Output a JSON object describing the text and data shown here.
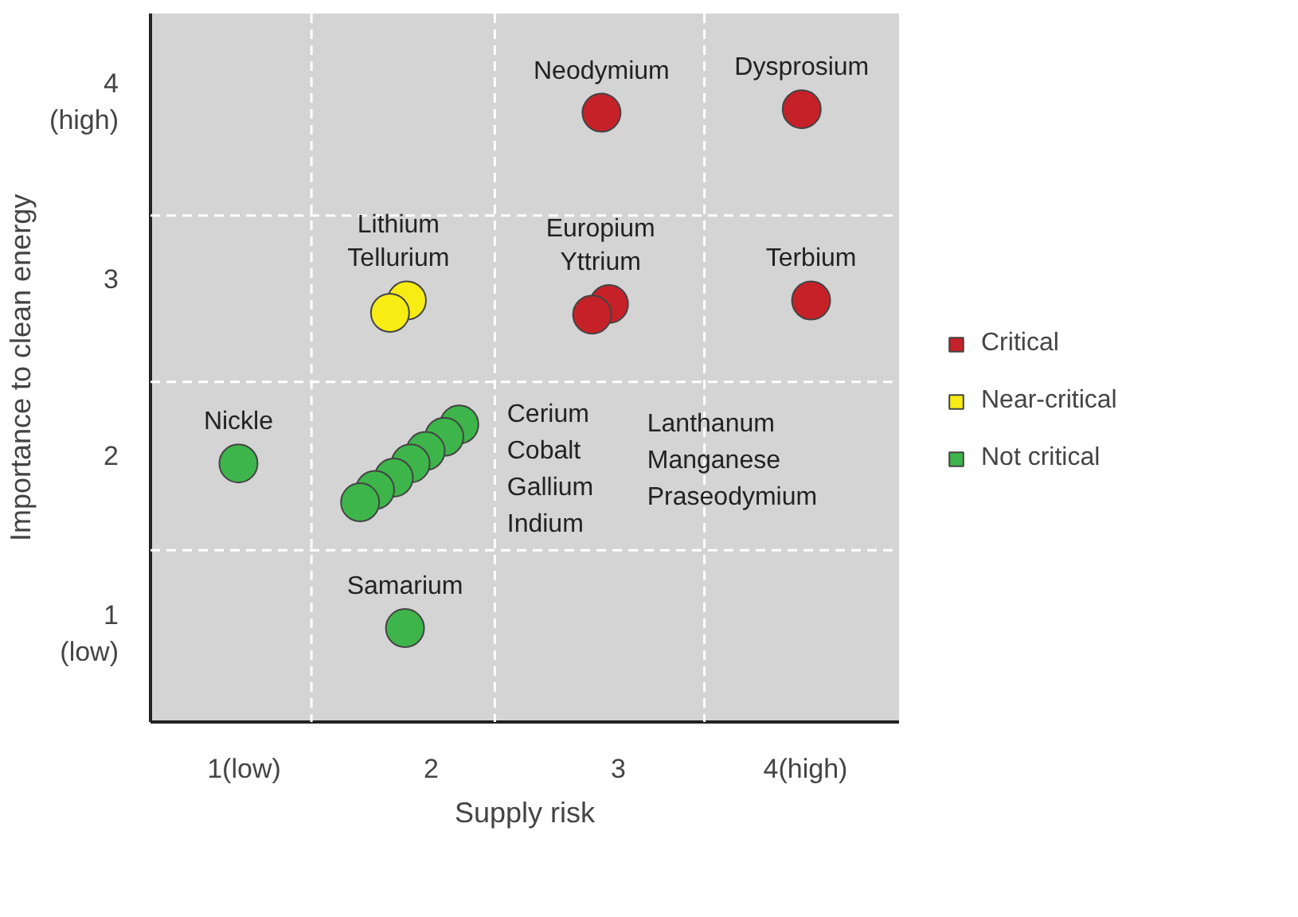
{
  "chart_data": {
    "type": "scatter",
    "xlabel": "Supply risk",
    "ylabel": "Importance to clean energy",
    "xlim": [
      0.5,
      4.5
    ],
    "ylim": [
      0.5,
      4.5
    ],
    "xticks": [
      {
        "value": 1,
        "label": "1(low)"
      },
      2,
      3,
      {
        "value": 4,
        "label": "4(high)"
      }
    ],
    "yticks": [
      {
        "value": 1,
        "label": "1\n(low)"
      },
      2,
      3,
      {
        "value": 4,
        "label": "4\n(high)"
      }
    ],
    "grid": false,
    "legend": "right",
    "marker": "circle",
    "ref_lines": [
      {
        "axis": "x",
        "value": 1.36,
        "color": "#ffffff",
        "line_style": "dashed"
      },
      {
        "axis": "x",
        "value": 2.34,
        "color": "#ffffff",
        "line_style": "dashed"
      },
      {
        "axis": "x",
        "value": 3.46,
        "color": "#ffffff",
        "line_style": "dashed"
      },
      {
        "axis": "y",
        "value": 1.47,
        "color": "#ffffff",
        "line_style": "dashed"
      },
      {
        "axis": "y",
        "value": 2.42,
        "color": "#ffffff",
        "line_style": "dashed"
      },
      {
        "axis": "y",
        "value": 3.36,
        "color": "#ffffff",
        "line_style": "dashed"
      }
    ],
    "series": [
      {
        "name": "Critical",
        "color": "#c62128",
        "x": [
          2.91,
          3.98,
          4.03,
          2.95,
          2.86
        ],
        "values": [
          3.94,
          3.96,
          2.88,
          2.86,
          2.8
        ]
      },
      {
        "name": "Near-critical",
        "color": "#f7ec13",
        "x": [
          1.87,
          1.78
        ],
        "values": [
          2.88,
          2.81
        ]
      },
      {
        "name": "Not critical",
        "color": "#3db54a",
        "x": [
          0.97,
          1.86,
          2.15,
          2.07,
          1.97,
          1.89,
          1.8,
          1.7,
          1.62
        ],
        "values": [
          1.96,
          1.03,
          2.18,
          2.11,
          2.03,
          1.96,
          1.88,
          1.81,
          1.74
        ]
      }
    ],
    "annotations": [
      {
        "text": "Neodymium",
        "x": 2.91,
        "y": 3.94
      },
      {
        "text": "Dysprosium",
        "x": 3.98,
        "y": 3.96
      },
      {
        "text": "Lithium",
        "x": 1.87,
        "y": 2.88
      },
      {
        "text": "Tellurium",
        "x": 1.78,
        "y": 2.81
      },
      {
        "text": "Europium",
        "x": 2.95,
        "y": 2.86
      },
      {
        "text": "Yttrium",
        "x": 2.86,
        "y": 2.8
      },
      {
        "text": "Terbium",
        "x": 4.03,
        "y": 2.88
      },
      {
        "text": "Nickle",
        "x": 0.97,
        "y": 1.96
      },
      "Cerium",
      "Cobalt",
      "Gallium",
      "Indium",
      "Lanthanum",
      "Manganese",
      "Praseodymium",
      {
        "text": "Samarium",
        "x": 1.86,
        "y": 1.03
      }
    ]
  }
}
